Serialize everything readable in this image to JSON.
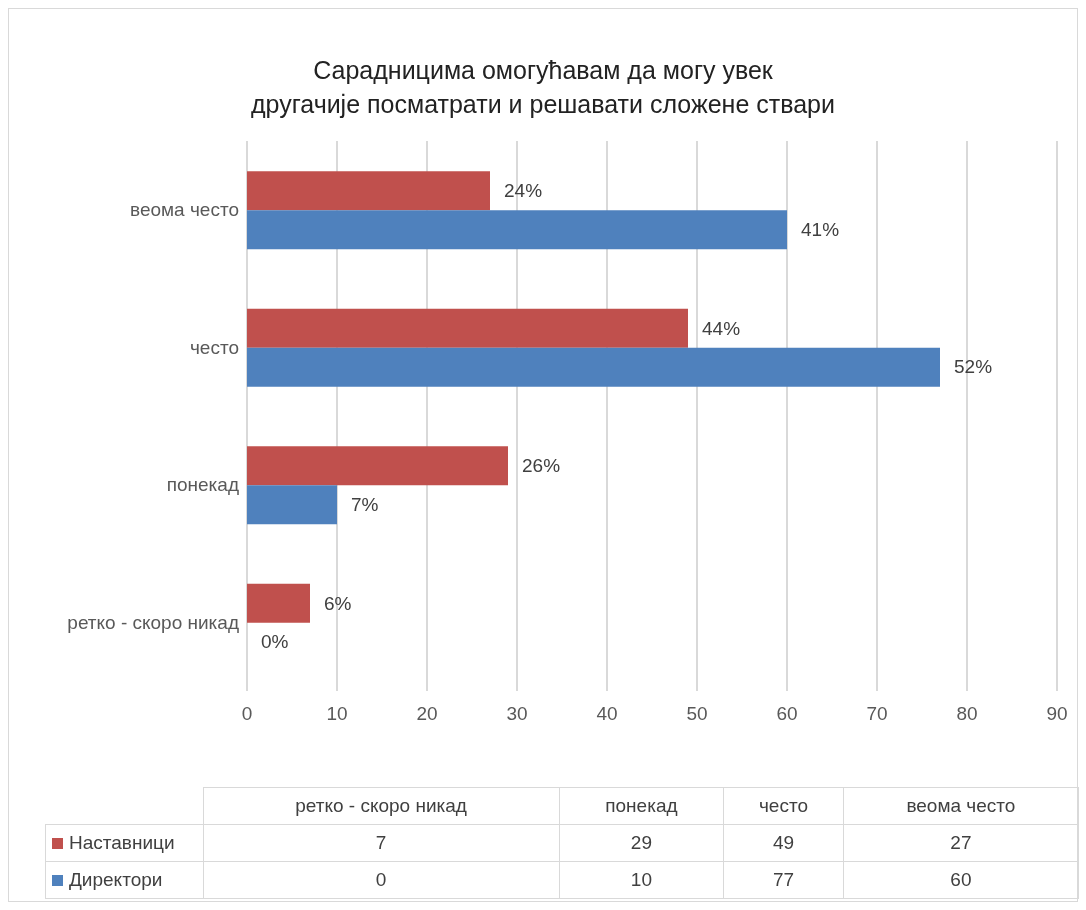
{
  "chart_data": [
    {
      "type": "bar",
      "orientation": "horizontal",
      "title": "Сарадницима омогућавам да могу увек\nдругачије посматрати и решавати сложене ствари",
      "categories": [
        "веома често",
        "често",
        "понекад",
        "ретко - скоро никад"
      ],
      "series": [
        {
          "color": "#c0504d",
          "values": [
            27,
            49,
            29,
            7
          ]
        },
        {
          "color": "#4f81bd",
          "values": [
            60,
            77,
            10,
            0
          ]
        }
      ],
      "annotations": [
        {
          "text": "24%",
          "x": 27,
          "y": "веома често"
        },
        {
          "text": "44%",
          "x": 49,
          "y": "често"
        },
        {
          "text": "26%",
          "x": 29,
          "y": "понекад"
        },
        {
          "text": "6%",
          "x": 7,
          "y": "ретко - скоро никад"
        },
        {
          "text": "41%",
          "x": 60,
          "y": "веома често"
        },
        {
          "text": "52%",
          "x": 77,
          "y": "често"
        },
        {
          "text": "7%",
          "x": 10,
          "y": "понекад"
        },
        {
          "text": "0%",
          "x": 0,
          "y": "ретко - скоро никад"
        }
      ],
      "xlim": [
        0,
        90
      ],
      "xticks": [
        0,
        10,
        20,
        30,
        40,
        50,
        60,
        70,
        80,
        90
      ],
      "grid": "x"
    },
    {
      "type": "other",
      "categories": [
        "ретко - скоро никад",
        "понекад",
        "често",
        "веома често"
      ],
      "series": [
        {
          "name": "Наставници",
          "color": "#c0504d",
          "values": [
            7,
            29,
            49,
            27
          ]
        },
        {
          "name": "Директори",
          "color": "#4f81bd",
          "values": [
            0,
            10,
            77,
            60
          ]
        }
      ],
      "data_labels": true,
      "legend": "left"
    }
  ]
}
